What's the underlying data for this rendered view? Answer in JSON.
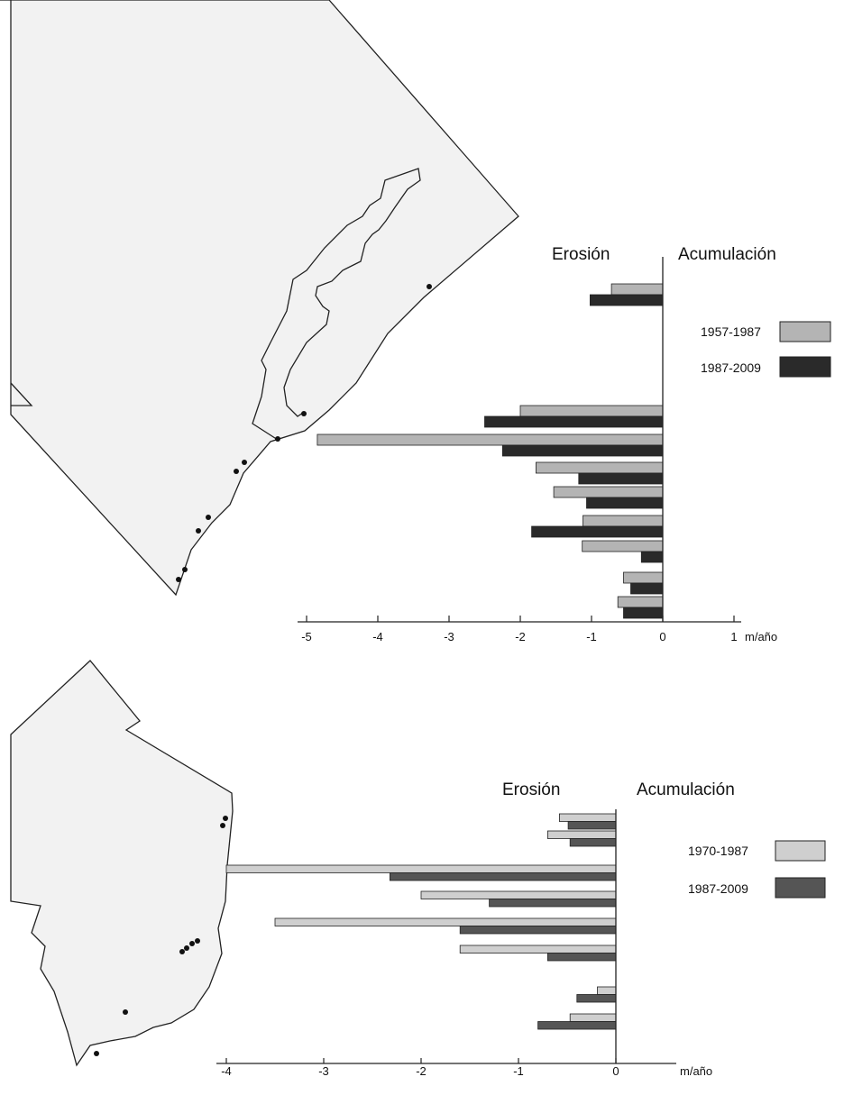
{
  "colors": {
    "top_early": "#b4b4b4",
    "top_late": "#2a2a2a",
    "bottom_early": "#cfcfcf",
    "bottom_late": "#555555",
    "land": "#f2f2f2"
  },
  "chart_data": [
    {
      "type": "bar",
      "orientation": "horizontal",
      "headings": {
        "left": "Erosión",
        "right": "Acumulación"
      },
      "unit": "m/año",
      "xlim": [
        -5,
        1
      ],
      "xticks": [
        -5,
        -4,
        -3,
        -2,
        -1,
        0,
        1
      ],
      "x_tick_labels": [
        "-5",
        "-4",
        "-3",
        "-2",
        "-1",
        "0",
        "1"
      ],
      "legend_position": "right",
      "series": [
        {
          "name": "1957-1987",
          "color": "#b4b4b4",
          "values": [
            -0.72,
            null,
            -2.0,
            -4.85,
            -1.78,
            -1.53,
            -1.12,
            -1.13,
            -0.55,
            -0.63
          ]
        },
        {
          "name": "1987-2009",
          "color": "#2a2a2a",
          "values": [
            -1.02,
            null,
            -2.5,
            -2.25,
            -1.18,
            -1.07,
            -1.84,
            -0.3,
            -0.45,
            -0.55
          ]
        }
      ],
      "grid": false
    },
    {
      "type": "bar",
      "orientation": "horizontal",
      "headings": {
        "left": "Erosión",
        "right": "Acumulación"
      },
      "unit": "m/año",
      "xlim": [
        -4,
        0.6
      ],
      "xticks": [
        -4,
        -3,
        -2,
        -1,
        0
      ],
      "x_tick_labels": [
        "-4",
        "-3",
        "-2",
        "-1",
        "0"
      ],
      "legend_position": "right",
      "series": [
        {
          "name": "1970-1987",
          "color": "#cfcfcf",
          "values": [
            -0.58,
            -0.7,
            null,
            -4.0,
            -2.0,
            -3.5,
            -1.6,
            -0.19,
            -0.47
          ]
        },
        {
          "name": "1987-2009",
          "color": "#555555",
          "values": [
            -0.49,
            -0.47,
            null,
            -2.32,
            -1.3,
            -1.6,
            -0.7,
            -0.4,
            -0.8
          ]
        }
      ],
      "grid": false
    }
  ]
}
